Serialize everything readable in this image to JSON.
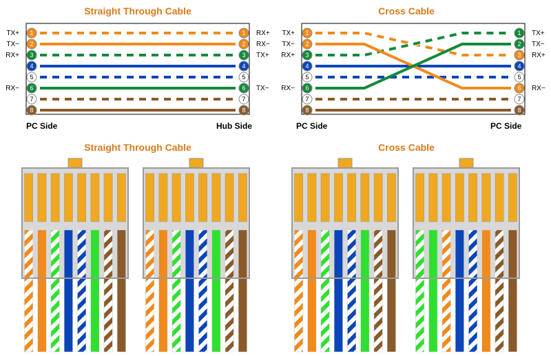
{
  "colors": {
    "white": "#ffffff",
    "orange": "#f08a1c",
    "green": "#128a3a",
    "blue": "#0b45b8",
    "brown": "#8a5a2a",
    "stripeBg": "#ffffff",
    "pinBorder": "#888888",
    "connectorBody": "#d8d8d8",
    "connectorStroke": "#9a9a9a",
    "pinGold": "#f0a820",
    "titleColor": "#d97a1a",
    "limegreen": "#30e030"
  },
  "layout": {
    "topRowY": 8,
    "wireBoxY": 32,
    "wireBoxH": 138,
    "wireBoxW": 340,
    "leftBoxX": 30,
    "rightBoxX": 420,
    "pinRadius": 7,
    "wireStroke": 4,
    "connRowTitleY": 210,
    "connRowY": 236,
    "connW": 170,
    "connH": 270
  },
  "straight": {
    "title": "Straight Through Cable",
    "leftSide": "PC Side",
    "rightSide": "Hub Side",
    "leftLabels": [
      "TX+",
      "TX−",
      "RX+",
      "",
      "",
      "RX−",
      "",
      ""
    ],
    "rightLabels": [
      "RX+",
      "RX−",
      "TX+",
      "",
      "",
      "TX−",
      "",
      ""
    ],
    "wires": [
      {
        "from": 1,
        "to": 1,
        "type": "stripe",
        "color": "orange"
      },
      {
        "from": 2,
        "to": 2,
        "type": "solid",
        "color": "orange"
      },
      {
        "from": 3,
        "to": 3,
        "type": "stripe",
        "color": "green"
      },
      {
        "from": 4,
        "to": 4,
        "type": "solid",
        "color": "blue"
      },
      {
        "from": 5,
        "to": 5,
        "type": "stripe",
        "color": "blue"
      },
      {
        "from": 6,
        "to": 6,
        "type": "solid",
        "color": "green"
      },
      {
        "from": 7,
        "to": 7,
        "type": "stripe",
        "color": "brown"
      },
      {
        "from": 8,
        "to": 8,
        "type": "solid",
        "color": "brown"
      }
    ],
    "pinFills": {
      "1": "orange",
      "2": "orange",
      "3": "green",
      "4": "blue",
      "5": "white",
      "6": "green",
      "7": "white",
      "8": "brown"
    }
  },
  "cross": {
    "title": "Cross Cable",
    "leftSide": "PC Side",
    "rightSide": "PC Side",
    "leftLabels": [
      "TX+",
      "TX−",
      "RX+",
      "",
      "",
      "RX−",
      "",
      ""
    ],
    "rightLabels": [
      "TX+",
      "TX−",
      "RX+",
      "",
      "",
      "RX−",
      "",
      ""
    ],
    "wires": [
      {
        "from": 4,
        "to": 4,
        "type": "solid",
        "color": "blue"
      },
      {
        "from": 5,
        "to": 5,
        "type": "stripe",
        "color": "blue"
      },
      {
        "from": 7,
        "to": 7,
        "type": "stripe",
        "color": "brown"
      },
      {
        "from": 8,
        "to": 8,
        "type": "solid",
        "color": "brown"
      },
      {
        "from": 1,
        "to": 3,
        "type": "stripe",
        "color": "orange"
      },
      {
        "from": 3,
        "to": 1,
        "type": "stripe",
        "color": "green"
      },
      {
        "from": 2,
        "to": 6,
        "type": "solid",
        "color": "orange"
      },
      {
        "from": 6,
        "to": 2,
        "type": "solid",
        "color": "green"
      }
    ],
    "pinFillsLeft": {
      "1": "orange",
      "2": "orange",
      "3": "green",
      "4": "blue",
      "5": "white",
      "6": "green",
      "7": "white",
      "8": "brown"
    },
    "pinFillsRight": {
      "1": "green",
      "2": "green",
      "3": "orange",
      "4": "blue",
      "5": "white",
      "6": "orange",
      "7": "white",
      "8": "brown"
    }
  },
  "connectors": {
    "t568b": [
      "stripe:orange",
      "solid:orange",
      "stripe:limegreen",
      "solid:blue",
      "stripe:blue",
      "solid:limegreen",
      "stripe:brown",
      "solid:brown"
    ],
    "t568a": [
      "stripe:limegreen",
      "solid:limegreen",
      "stripe:orange",
      "solid:blue",
      "stripe:blue",
      "solid:orange",
      "stripe:brown",
      "solid:brown"
    ],
    "straight": {
      "title": "Straight Through Cable",
      "left": "t568b",
      "right": "t568b"
    },
    "cross": {
      "title": "Cross Cable",
      "left": "t568b",
      "right": "t568a"
    }
  }
}
